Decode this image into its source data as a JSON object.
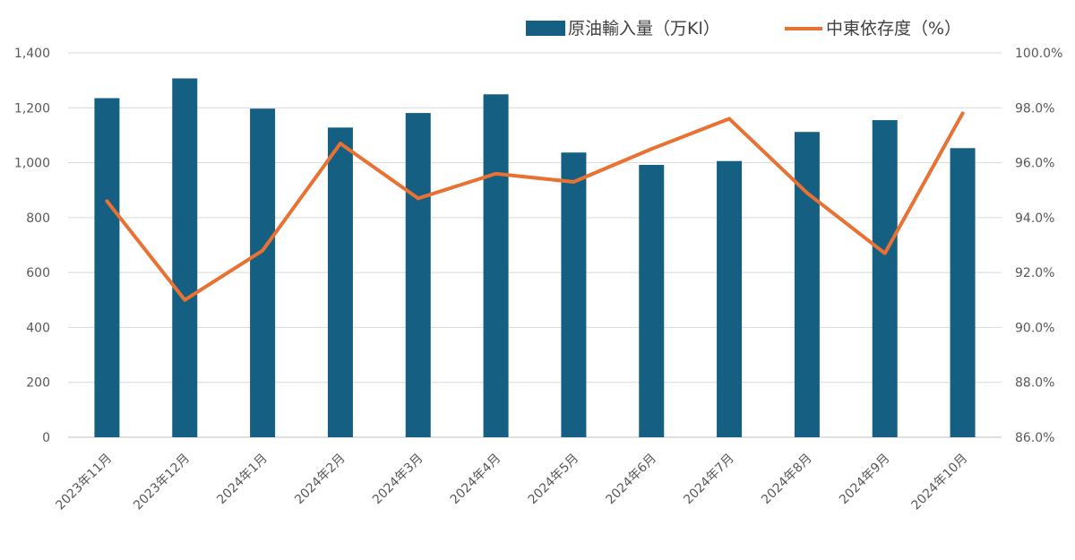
{
  "chart_data": {
    "type": "bar+line",
    "categories": [
      "2023年11月",
      "2023年12月",
      "2024年1月",
      "2024年2月",
      "2024年3月",
      "2024年4月",
      "2024年5月",
      "2024年6月",
      "2024年7月",
      "2024年8月",
      "2024年9月",
      "2024年10月"
    ],
    "series": [
      {
        "name": "原油輸入量（万Kl）",
        "type": "bar",
        "axis": "left",
        "color": "#156082",
        "values": [
          1235,
          1307,
          1197,
          1128,
          1181,
          1249,
          1037,
          992,
          1006,
          1112,
          1155,
          1053
        ]
      },
      {
        "name": "中東依存度（%）",
        "type": "line",
        "axis": "right",
        "color": "#E97132",
        "values": [
          94.6,
          91.0,
          92.8,
          96.7,
          94.7,
          95.6,
          95.3,
          96.5,
          97.6,
          94.9,
          92.7,
          97.8
        ]
      }
    ],
    "y_left": {
      "min": 0,
      "max": 1400,
      "step": 200,
      "tick_labels": [
        "0",
        "200",
        "400",
        "600",
        "800",
        "1,000",
        "1,200",
        "1,400"
      ]
    },
    "y_right": {
      "min": 86,
      "max": 100,
      "step": 2,
      "tick_labels": [
        "86.0%",
        "88.0%",
        "90.0%",
        "92.0%",
        "94.0%",
        "96.0%",
        "98.0%",
        "100.0%"
      ]
    },
    "grid": true,
    "legend": "top-right",
    "legend_labels": {
      "bar": "原油輸入量（万Kl）",
      "line": "中東依存度（%）"
    }
  }
}
